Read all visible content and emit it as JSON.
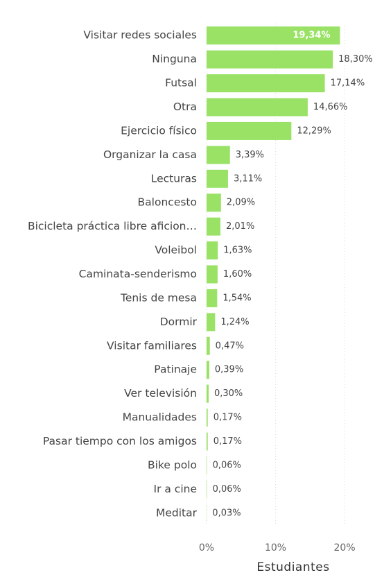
{
  "chart_data": {
    "type": "bar",
    "orientation": "horizontal",
    "x_label": "Estudiantes",
    "categories": [
      "Visitar redes sociales",
      "Ninguna",
      "Futsal",
      "Otra",
      "Ejercicio físico",
      "Organizar la casa",
      "Lecturas",
      "Baloncesto",
      "Bicicleta práctica libre aficion…",
      "Voleibol",
      "Caminata-senderismo",
      "Tenis de mesa",
      "Dormir",
      "Visitar familiares",
      "Patinaje",
      "Ver televisión",
      "Manualidades",
      "Pasar tiempo con los amigos",
      "Bike polo",
      "Ir a cine",
      "Meditar"
    ],
    "values": [
      19.34,
      18.3,
      17.14,
      14.66,
      12.29,
      3.39,
      3.11,
      2.09,
      2.01,
      1.63,
      1.6,
      1.54,
      1.24,
      0.47,
      0.39,
      0.3,
      0.17,
      0.17,
      0.06,
      0.06,
      0.03
    ],
    "value_labels": [
      "19,34%",
      "18,30%",
      "17,14%",
      "14,66%",
      "12,29%",
      "3,39%",
      "3,11%",
      "2,09%",
      "2,01%",
      "1,63%",
      "1,60%",
      "1,54%",
      "1,24%",
      "0,47%",
      "0,39%",
      "0,30%",
      "0,17%",
      "0,17%",
      "0,06%",
      "0,06%",
      "0,03%"
    ],
    "color": "#99e265",
    "xlim": [
      0,
      22
    ],
    "xticks": [
      {
        "value": 0,
        "label": "0%"
      },
      {
        "value": 10,
        "label": "10%"
      },
      {
        "value": 20,
        "label": "20%"
      }
    ],
    "grid": true
  }
}
